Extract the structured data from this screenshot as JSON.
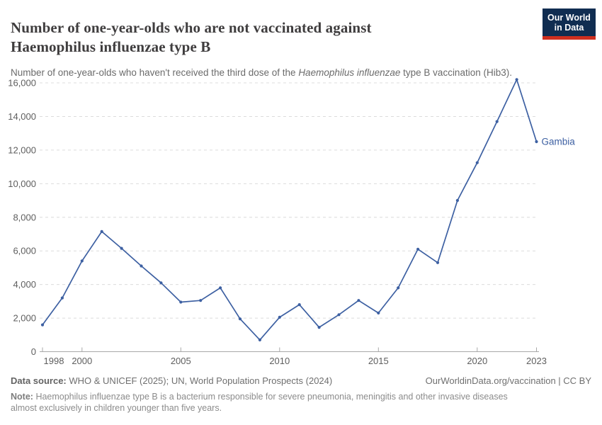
{
  "header": {
    "title": "Number of one-year-olds who are not vaccinated against Haemophilus influenzae type B",
    "subtitle_prefix": "Number of one-year-olds who haven't received the third dose of the ",
    "subtitle_italic": "Haemophilus influenzae",
    "subtitle_suffix": " type B vaccination (Hib3)."
  },
  "logo": {
    "line1": "Our World",
    "line2": "in Data",
    "bg_color": "#102d51",
    "bar_color": "#cf2f1f"
  },
  "chart_data": {
    "type": "line",
    "title": "Number of one-year-olds who are not vaccinated against Haemophilus influenzae type B",
    "xlabel": "",
    "ylabel": "",
    "xlim": [
      1998,
      2023
    ],
    "ylim": [
      0,
      16000
    ],
    "grid": "horizontal-dashed",
    "legend_position": "end-of-line-label",
    "x_ticks": [
      1998,
      2000,
      2005,
      2010,
      2015,
      2020,
      2023
    ],
    "y_ticks": [
      0,
      2000,
      4000,
      6000,
      8000,
      10000,
      12000,
      14000,
      16000
    ],
    "x": [
      1998,
      1999,
      2000,
      2001,
      2002,
      2003,
      2004,
      2005,
      2006,
      2007,
      2008,
      2009,
      2010,
      2011,
      2012,
      2013,
      2014,
      2015,
      2016,
      2017,
      2018,
      2019,
      2020,
      2021,
      2022,
      2023
    ],
    "series": [
      {
        "name": "Gambia",
        "color": "#3d60a2",
        "values": [
          1600,
          3200,
          5400,
          7150,
          6150,
          5100,
          4100,
          2950,
          3050,
          3800,
          1950,
          700,
          2050,
          2800,
          1450,
          2200,
          3050,
          2300,
          3800,
          6100,
          5300,
          9000,
          11250,
          13700,
          16200,
          12500
        ]
      }
    ]
  },
  "colors": {
    "accent_line": "#3d60a2",
    "gridline": "#dcdcdc",
    "axis": "#a8a8a8",
    "tick_label": "#5e5e5e"
  },
  "footer": {
    "datasource_label": "Data source:",
    "datasource_text": "WHO & UNICEF (2025); UN, World Population Prospects (2024)",
    "rights": "OurWorldinData.org/vaccination | CC BY",
    "note_label": "Note:",
    "note_text": "Haemophilus influenzae type B is a bacterium responsible for severe pneumonia, meningitis and other invasive diseases almost exclusively in children younger than five years."
  }
}
